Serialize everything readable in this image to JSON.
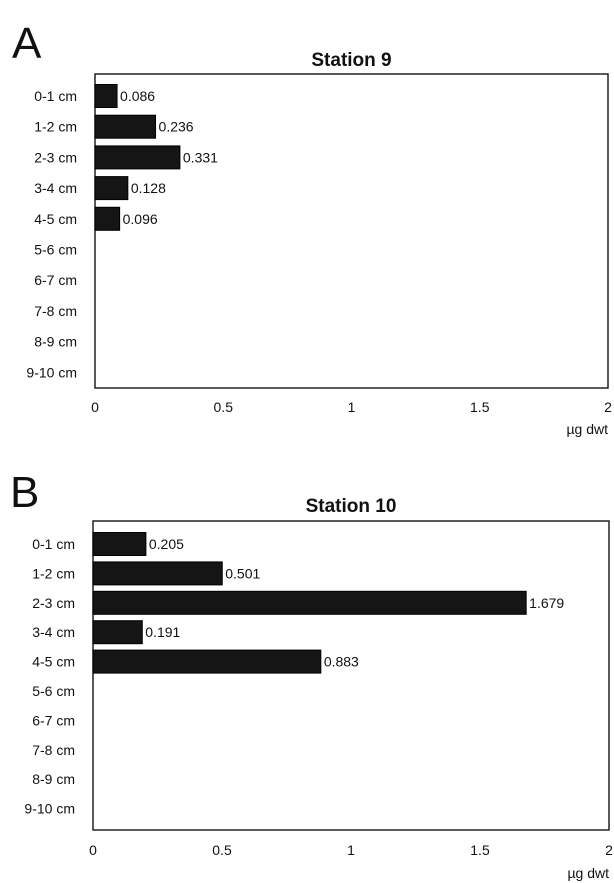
{
  "chart_data": [
    {
      "type": "bar",
      "orientation": "horizontal",
      "panel": "A",
      "title": "Station 9",
      "categories": [
        "0-1 cm",
        "1-2 cm",
        "2-3 cm",
        "3-4 cm",
        "4-5 cm",
        "5-6 cm",
        "6-7 cm",
        "7-8 cm",
        "8-9 cm",
        "9-10 cm"
      ],
      "values": [
        0.086,
        0.236,
        0.331,
        0.128,
        0.096,
        null,
        null,
        null,
        null,
        null
      ],
      "value_labels": [
        "0.086",
        "0.236",
        "0.331",
        "0.128",
        "0.096",
        "",
        "",
        "",
        "",
        ""
      ],
      "xlim": [
        0,
        2
      ],
      "xticks": [
        "0",
        "0.5",
        "1",
        "1.5",
        "2"
      ],
      "xlabel": "µg dwt",
      "bar_color": "#151515"
    },
    {
      "type": "bar",
      "orientation": "horizontal",
      "panel": "B",
      "title": "Station 10",
      "categories": [
        "0-1 cm",
        "1-2 cm",
        "2-3 cm",
        "3-4 cm",
        "4-5 cm",
        "5-6 cm",
        "6-7 cm",
        "7-8 cm",
        "8-9 cm",
        "9-10 cm"
      ],
      "values": [
        0.205,
        0.501,
        1.679,
        0.191,
        0.883,
        null,
        null,
        null,
        null,
        null
      ],
      "value_labels": [
        "0.205",
        "0.501",
        "1.679",
        "0.191",
        "0.883",
        "",
        "",
        "",
        "",
        ""
      ],
      "xlim": [
        0,
        2
      ],
      "xticks": [
        "0",
        "0.5",
        "1",
        "1.5",
        "2"
      ],
      "xlabel": "µg dwt",
      "bar_color": "#151515"
    }
  ]
}
